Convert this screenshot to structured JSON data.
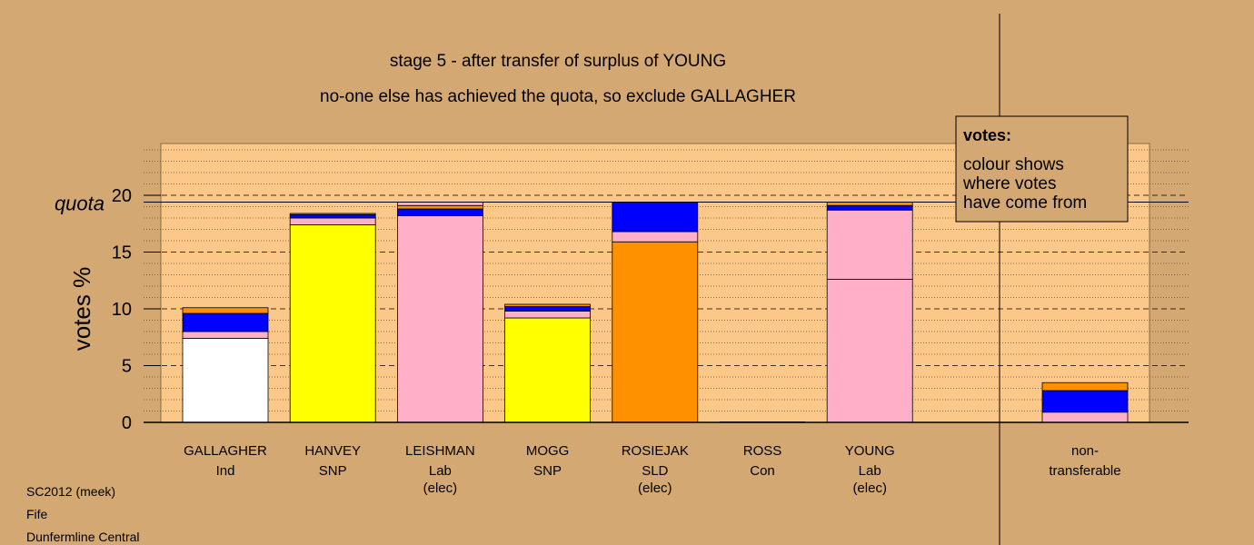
{
  "chart_data": {
    "type": "bar",
    "title": "stage 5 - after transfer of surplus of YOUNG",
    "subtitle": "no-one else has achieved the quota, so exclude GALLAGHER",
    "ylabel": "votes %",
    "quota_label": "quota",
    "quota": 19.4,
    "ylim": [
      0,
      24
    ],
    "yticks": [
      0,
      5,
      10,
      15,
      20
    ],
    "grid": true,
    "legend_title": "votes:",
    "legend_lines": [
      "colour shows",
      "where votes",
      "have come from"
    ],
    "legend_position": "top-right",
    "colors": {
      "background": "#d4a872",
      "plot": "#fcc88a",
      "white": "#ffffff",
      "pink": "#ffb0c8",
      "blue": "#0000ff",
      "orange": "#ff9000",
      "yellow": "#ffff00"
    },
    "candidates": [
      {
        "name": "GALLAGHER",
        "party": "Ind",
        "elected": "",
        "segments": [
          {
            "color": "white",
            "value": 7.4
          },
          {
            "color": "pink",
            "value": 0.6
          },
          {
            "color": "blue",
            "value": 1.6
          },
          {
            "color": "orange",
            "value": 0.5
          }
        ]
      },
      {
        "name": "HANVEY",
        "party": "SNP",
        "elected": "",
        "segments": [
          {
            "color": "yellow",
            "value": 17.4
          },
          {
            "color": "pink",
            "value": 0.6
          },
          {
            "color": "blue",
            "value": 0.3
          },
          {
            "color": "orange",
            "value": 0.1
          }
        ]
      },
      {
        "name": "LEISHMAN",
        "party": "Lab",
        "elected": "(elec)",
        "segments": [
          {
            "color": "pink",
            "value": 18.2
          },
          {
            "color": "blue",
            "value": 0.6
          },
          {
            "color": "orange",
            "value": 0.3
          },
          {
            "color": "pink",
            "value": 0.3
          }
        ]
      },
      {
        "name": "MOGG",
        "party": "SNP",
        "elected": "",
        "segments": [
          {
            "color": "yellow",
            "value": 9.2
          },
          {
            "color": "pink",
            "value": 0.6
          },
          {
            "color": "blue",
            "value": 0.4
          },
          {
            "color": "orange",
            "value": 0.2
          }
        ]
      },
      {
        "name": "ROSIEJAK",
        "party": "SLD",
        "elected": "(elec)",
        "segments": [
          {
            "color": "orange",
            "value": 15.9
          },
          {
            "color": "pink",
            "value": 0.9
          },
          {
            "color": "blue",
            "value": 2.6
          }
        ]
      },
      {
        "name": "ROSS",
        "party": "Con",
        "elected": "",
        "segments": []
      },
      {
        "name": "YOUNG",
        "party": "Lab",
        "elected": "(elec)",
        "segments": [
          {
            "color": "pink",
            "value": 12.6
          },
          {
            "color": "pink",
            "value": 6.1
          },
          {
            "color": "blue",
            "value": 0.4
          },
          {
            "color": "orange",
            "value": 0.3
          }
        ]
      }
    ],
    "nontransferable": {
      "label_lines": [
        "non-",
        "transferable"
      ],
      "segments": [
        {
          "color": "pink",
          "value": 0.9
        },
        {
          "color": "blue",
          "value": 1.9
        },
        {
          "color": "orange",
          "value": 0.7
        }
      ]
    }
  },
  "footer": {
    "line1": "SC2012 (meek)",
    "line2": "Fife",
    "line3": "Dunfermline Central"
  }
}
